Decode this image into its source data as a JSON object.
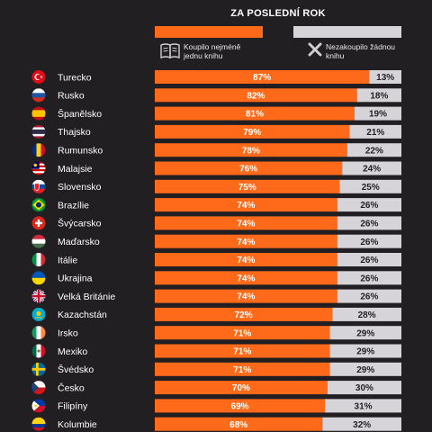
{
  "header": {
    "title": "ZA POSLEDNÍ ROK"
  },
  "legend": {
    "bought_label": "Koupilo nejméně jednu knihu",
    "bought_color": "#ff6a1a",
    "bought_icon": "open-book-icon",
    "not_bought_label": "Nezakoupilo žádnou knihu",
    "not_bought_color": "#d6d4d8",
    "not_bought_icon": "x-mark-icon"
  },
  "chart_data": {
    "type": "bar",
    "orientation": "horizontal",
    "stacked": true,
    "title": "ZA POSLEDNÍ ROK",
    "categories": [
      "Turecko",
      "Rusko",
      "Španělsko",
      "Thajsko",
      "Rumunsko",
      "Malajsie",
      "Slovensko",
      "Brazílie",
      "Švýcarsko",
      "Maďarsko",
      "Itálie",
      "Ukrajina",
      "Velká Británie",
      "Kazachstán",
      "Irsko",
      "Mexiko",
      "Švédsko",
      "Česko",
      "Filipíny",
      "Kolumbie"
    ],
    "series": [
      {
        "name": "Koupilo nejméně jednu knihu",
        "color": "#ff6a1a",
        "values": [
          87,
          82,
          81,
          79,
          78,
          76,
          75,
          74,
          74,
          74,
          74,
          74,
          74,
          72,
          71,
          71,
          71,
          70,
          69,
          68
        ]
      },
      {
        "name": "Nezakoupilo žádnou knihu",
        "color": "#d6d4d8",
        "values": [
          13,
          18,
          19,
          21,
          22,
          24,
          25,
          26,
          26,
          26,
          26,
          26,
          26,
          28,
          29,
          29,
          29,
          30,
          31,
          32
        ]
      }
    ],
    "value_labels": [
      [
        "87%",
        "13%"
      ],
      [
        "82%",
        "18%"
      ],
      [
        "81%",
        "19%"
      ],
      [
        "79%",
        "21%"
      ],
      [
        "78%",
        "22%"
      ],
      [
        "76%",
        "24%"
      ],
      [
        "75%",
        "25%"
      ],
      [
        "74%",
        "26%"
      ],
      [
        "74%",
        "26%"
      ],
      [
        "74%",
        "26%"
      ],
      [
        "74%",
        "26%"
      ],
      [
        "74%",
        "26%"
      ],
      [
        "74%",
        "26%"
      ],
      [
        "72%",
        "28%"
      ],
      [
        "71%",
        "29%"
      ],
      [
        "71%",
        "29%"
      ],
      [
        "71%",
        "29%"
      ],
      [
        "70%",
        "30%"
      ],
      [
        "69%",
        "31%"
      ],
      [
        "68%",
        "32%"
      ]
    ],
    "flag_icons": [
      "flag-turkey-icon",
      "flag-russia-icon",
      "flag-spain-icon",
      "flag-thailand-icon",
      "flag-romania-icon",
      "flag-malaysia-icon",
      "flag-slovakia-icon",
      "flag-brazil-icon",
      "flag-switzerland-icon",
      "flag-hungary-icon",
      "flag-italy-icon",
      "flag-ukraine-icon",
      "flag-uk-icon",
      "flag-kazakhstan-icon",
      "flag-ireland-icon",
      "flag-mexico-icon",
      "flag-sweden-icon",
      "flag-czechia-icon",
      "flag-philippines-icon",
      "flag-colombia-icon"
    ],
    "xlim": [
      0,
      100
    ],
    "grid": false,
    "legend_position": "top"
  }
}
